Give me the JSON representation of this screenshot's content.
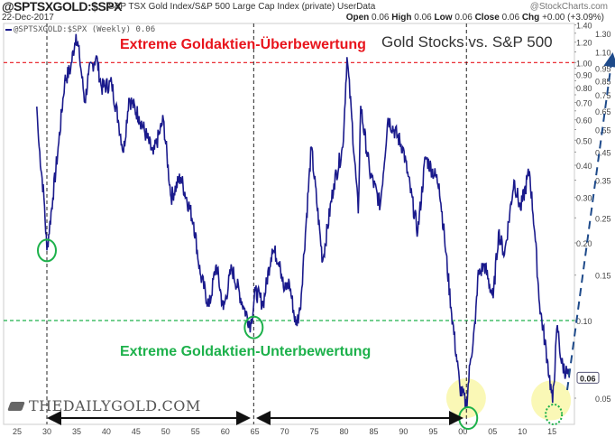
{
  "header": {
    "symbol": "@SPTSXGOLD:$SPX",
    "description": "S&P TSX Gold Index/S&P 500 Large Cap Index (private) UserData",
    "date": "22-Dec-2017",
    "credit": "@StockCharts.com",
    "ohlc": {
      "open_label": "Open",
      "open": "0.06",
      "high_label": "High",
      "high": "0.06",
      "low_label": "Low",
      "low": "0.06",
      "close_label": "Close",
      "close": "0.06",
      "chg_label": "Chg",
      "chg": "+0.00 (+3.09%)"
    },
    "legend": "@SPTSXGOLD:$SPX (Weekly) 0.06"
  },
  "annotations": {
    "overvalued": "Extreme Goldaktien-Überbewertung",
    "undervalued": "Extreme Goldaktien-Unterbewertung",
    "watermark": "THEDAILYGOLD.COM"
  },
  "chart_data": {
    "type": "line",
    "title": "Gold Stocks vs. S&P 500",
    "yscale": "log",
    "ylim": [
      0.042,
      1.45
    ],
    "xlim": [
      1924,
      2019
    ],
    "y_ticks": [
      "1.40",
      "1.30",
      "1.20",
      "1.10",
      "1.00",
      "0.95",
      "0.90",
      "0.85",
      "0.80",
      "0.75",
      "0.70",
      "0.65",
      "0.60",
      "0.55",
      "0.50",
      "0.45",
      "0.40",
      "0.35",
      "0.30",
      "0.25",
      "0.20",
      "0.15",
      "0.10",
      "0.05"
    ],
    "x_ticks": [
      {
        "year": 1925,
        "label": "25"
      },
      {
        "year": 1930,
        "label": "30"
      },
      {
        "year": 1935,
        "label": "35"
      },
      {
        "year": 1940,
        "label": "40"
      },
      {
        "year": 1945,
        "label": "45"
      },
      {
        "year": 1950,
        "label": "50"
      },
      {
        "year": 1955,
        "label": "55"
      },
      {
        "year": 1960,
        "label": "60"
      },
      {
        "year": 1965,
        "label": "65"
      },
      {
        "year": 1970,
        "label": "70"
      },
      {
        "year": 1975,
        "label": "75"
      },
      {
        "year": 1980,
        "label": "80"
      },
      {
        "year": 1985,
        "label": "85"
      },
      {
        "year": 1990,
        "label": "90"
      },
      {
        "year": 1995,
        "label": "95"
      },
      {
        "year": 2000,
        "label": "00"
      },
      {
        "year": 2005,
        "label": "05"
      },
      {
        "year": 2010,
        "label": "10"
      },
      {
        "year": 2015,
        "label": "15"
      }
    ],
    "last_value_tag": "0.06",
    "series": [
      {
        "name": "@SPTSXGOLD:$SPX (Weekly)",
        "color": "#1a1a8c",
        "x": [
          1928.3,
          1928.6,
          1929.5,
          1930.0,
          1931.0,
          1932.0,
          1933.0,
          1934.0,
          1934.9,
          1935.5,
          1936.4,
          1937.0,
          1938.3,
          1939.2,
          1940.9,
          1942.0,
          1942.9,
          1943.8,
          1945.5,
          1947.9,
          1949.6,
          1950.9,
          1952.5,
          1954.7,
          1955.8,
          1957.3,
          1958.5,
          1959.7,
          1961.1,
          1963.1,
          1964.3,
          1965.1,
          1966.4,
          1967.9,
          1969.2,
          1969.9,
          1970.8,
          1971.9,
          1972.6,
          1974.5,
          1976.4,
          1978.3,
          1979.8,
          1980.5,
          1981.3,
          1982.4,
          1982.8,
          1984.3,
          1986.1,
          1987.4,
          1989.9,
          1992.4,
          1993.7,
          1996.0,
          1996.9,
          1998.0,
          1999.5,
          2000.6,
          2001.3,
          2002.1,
          2002.5,
          2003.6,
          2005.1,
          2006.0,
          2007.0,
          2008.6,
          2009.7,
          2011.2,
          2012.1,
          2012.9,
          2014.2,
          2015.1,
          2015.9,
          2016.6,
          2017.9
        ],
        "values": [
          0.675,
          0.5,
          0.3,
          0.187,
          0.3,
          0.49,
          0.85,
          0.95,
          1.29,
          1.05,
          0.7,
          0.9,
          1.06,
          0.8,
          0.83,
          0.6,
          0.45,
          0.73,
          0.62,
          0.44,
          0.6,
          0.3,
          0.36,
          0.24,
          0.152,
          0.113,
          0.165,
          0.11,
          0.16,
          0.113,
          0.096,
          0.13,
          0.116,
          0.19,
          0.17,
          0.13,
          0.14,
          0.096,
          0.11,
          0.47,
          0.17,
          0.34,
          0.47,
          1.05,
          0.61,
          0.26,
          0.68,
          0.38,
          0.28,
          0.61,
          0.47,
          0.22,
          0.43,
          0.34,
          0.21,
          0.113,
          0.055,
          0.047,
          0.071,
          0.098,
          0.147,
          0.165,
          0.122,
          0.22,
          0.18,
          0.35,
          0.27,
          0.38,
          0.22,
          0.116,
          0.071,
          0.048,
          0.096,
          0.068,
          0.06
        ]
      }
    ],
    "reference_lines": [
      {
        "value": 1.0,
        "color": "#e8141c",
        "style": "dashed"
      },
      {
        "value": 0.1,
        "color": "#1db14b",
        "style": "dashed"
      }
    ],
    "marked_lows": [
      1930,
      1965,
      2001,
      2015.5
    ]
  }
}
